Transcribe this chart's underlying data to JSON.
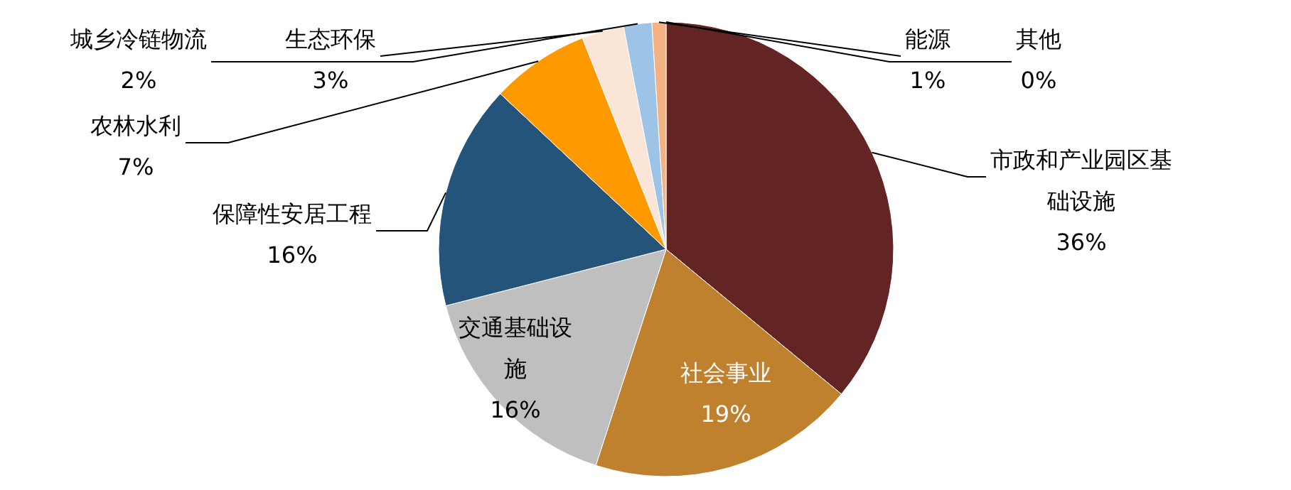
{
  "chart_data": {
    "type": "pie",
    "categories": [
      "市政和产业园区基础设施",
      "社会事业",
      "交通基础设施",
      "保障性安居工程",
      "农林水利",
      "生态环保",
      "城乡冷链物流",
      "能源",
      "其他"
    ],
    "values": [
      36,
      19,
      16,
      16,
      7,
      3,
      2,
      1,
      0
    ],
    "value_labels": [
      "36%",
      "19%",
      "16%",
      "16%",
      "7%",
      "3%",
      "2%",
      "1%",
      "0%"
    ],
    "colors": [
      "#632523",
      "#c0812f",
      "#bfbfbf",
      "#245479",
      "#ff9900",
      "#fbe5d6",
      "#9dc3e6",
      "#f4b183",
      "#a6a6a6"
    ]
  }
}
